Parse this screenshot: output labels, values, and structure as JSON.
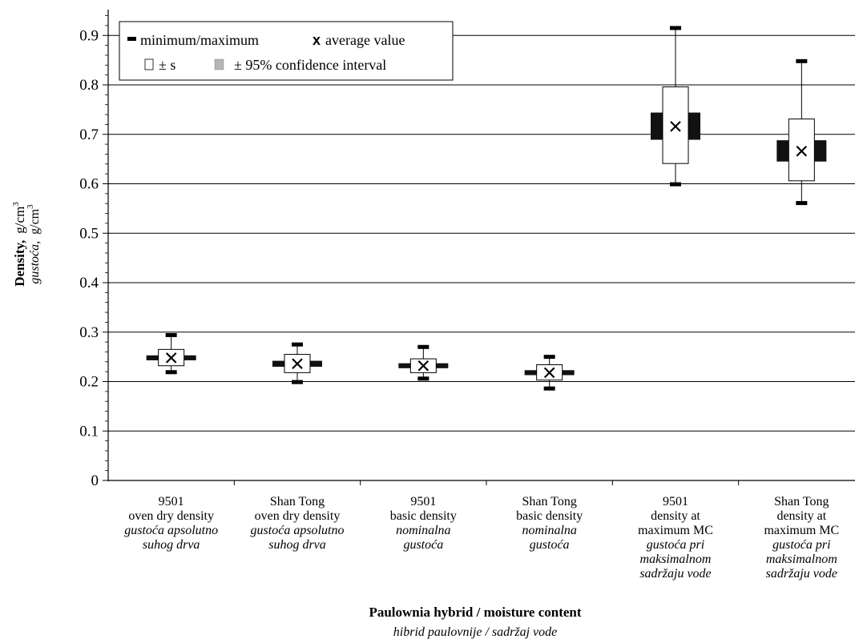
{
  "chart_data": {
    "type": "boxplot",
    "xlabel": "Paulownia hybrid / moisture content",
    "xlabel_secondary": "hibrid paulovnije / sadržaj vode",
    "ylabel_bold": "Density,",
    "ylabel_unit": "g/cm",
    "ylabel_secondary": "gustoća,",
    "ylabel_secondary_unit": "g/cm",
    "ylabel_superscript": "3",
    "ylim": [
      0,
      0.95
    ],
    "yticks": [
      0,
      0.1,
      0.2,
      0.3,
      0.4,
      0.5,
      0.6,
      0.7,
      0.8,
      0.9
    ],
    "ytick_labels": [
      "0",
      "0.1",
      "0.2",
      "0.3",
      "0.4",
      "0.5",
      "0.6",
      "0.7",
      "0.8",
      "0.9"
    ],
    "grid": true,
    "legend": {
      "placement": "top-left",
      "minmax_label": "minimum/maximum",
      "avg_marker": "x",
      "avg_label": "average value",
      "sd_label": "± s",
      "ci_label": "± 95% confidence  interval"
    },
    "categories": [
      {
        "lines": [
          "9501",
          "oven dry density"
        ],
        "italic_lines": [
          "gustoća apsolutno",
          "suhog drva"
        ]
      },
      {
        "lines": [
          "Shan Tong",
          "oven dry density"
        ],
        "italic_lines": [
          "gustoća apsolutno",
          "suhog drva"
        ]
      },
      {
        "lines": [
          "9501",
          "basic density"
        ],
        "italic_lines": [
          "nominalna",
          "gustoća"
        ]
      },
      {
        "lines": [
          "Shan Tong",
          "basic density"
        ],
        "italic_lines": [
          "nominalna",
          "gustoća"
        ]
      },
      {
        "lines": [
          "9501",
          "density at",
          "maximum MC"
        ],
        "italic_lines": [
          "gustoća pri",
          "maksimalnom",
          "sadržaju vode"
        ]
      },
      {
        "lines": [
          "Shan Tong",
          "density at",
          "maximum MC"
        ],
        "italic_lines": [
          "gustoća pri",
          "maksimalnom",
          "sadržaju vode"
        ]
      }
    ],
    "series": [
      {
        "min": 0.219,
        "max": 0.294,
        "mean": 0.248,
        "sd_low": 0.232,
        "sd_high": 0.265,
        "ci_low": 0.243,
        "ci_high": 0.253
      },
      {
        "min": 0.199,
        "max": 0.275,
        "mean": 0.236,
        "sd_low": 0.218,
        "sd_high": 0.255,
        "ci_low": 0.23,
        "ci_high": 0.242
      },
      {
        "min": 0.206,
        "max": 0.27,
        "mean": 0.232,
        "sd_low": 0.218,
        "sd_high": 0.246,
        "ci_low": 0.227,
        "ci_high": 0.237
      },
      {
        "min": 0.186,
        "max": 0.25,
        "mean": 0.218,
        "sd_low": 0.203,
        "sd_high": 0.234,
        "ci_low": 0.213,
        "ci_high": 0.223
      },
      {
        "min": 0.599,
        "max": 0.915,
        "mean": 0.716,
        "sd_low": 0.641,
        "sd_high": 0.796,
        "ci_low": 0.689,
        "ci_high": 0.744
      },
      {
        "min": 0.561,
        "max": 0.848,
        "mean": 0.666,
        "sd_low": 0.606,
        "sd_high": 0.731,
        "ci_low": 0.645,
        "ci_high": 0.688
      }
    ]
  }
}
